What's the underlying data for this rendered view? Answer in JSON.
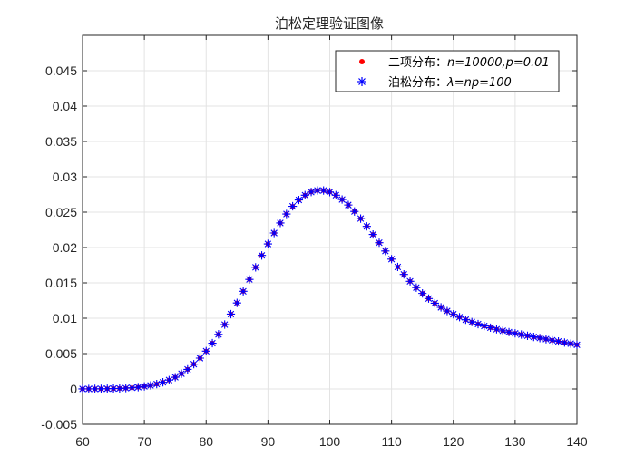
{
  "chart_data": {
    "type": "scatter",
    "title": "泊松定理验证图像",
    "xlabel": "",
    "ylabel": "",
    "xlim": [
      60,
      140
    ],
    "ylim": [
      -0.005,
      0.05
    ],
    "xticks": [
      "60",
      "70",
      "80",
      "90",
      "100",
      "110",
      "120",
      "130",
      "140"
    ],
    "yticks": [
      "-0.005",
      "0",
      "0.005",
      "0.01",
      "0.015",
      "0.02",
      "0.025",
      "0.03",
      "0.035",
      "0.04",
      "0.045"
    ],
    "grid": true,
    "legend_position": "top-right",
    "x": [
      60,
      61,
      62,
      63,
      64,
      65,
      66,
      67,
      68,
      69,
      70,
      71,
      72,
      73,
      74,
      75,
      76,
      77,
      78,
      79,
      80,
      81,
      82,
      83,
      84,
      85,
      86,
      87,
      88,
      89,
      90,
      91,
      92,
      93,
      94,
      95,
      96,
      97,
      98,
      99,
      100,
      101,
      102,
      103,
      104,
      105,
      106,
      107,
      108,
      109,
      110,
      111,
      112,
      113,
      114,
      115,
      116,
      117,
      118,
      119,
      120,
      121,
      122,
      123,
      124,
      125,
      126,
      127,
      128,
      129,
      130,
      131,
      132,
      133,
      134,
      135,
      136,
      137,
      138,
      139,
      140
    ],
    "series": [
      {
        "name_prefix": "二项分布：",
        "name_math": "n=10000,p=0.01",
        "marker": "dot",
        "color": "#ff0000",
        "values": [
          5e-06,
          8e-06,
          1.3e-05,
          2.1e-05,
          3.3e-05,
          5.1e-05,
          7.8e-05,
          0.000118,
          0.000174,
          0.000252,
          0.000358,
          0.000502,
          0.000693,
          0.000942,
          0.00126,
          0.00166,
          0.00216,
          0.00277,
          0.0035,
          0.00436,
          0.00535,
          0.00647,
          0.00772,
          0.0091,
          0.01058,
          0.01216,
          0.01381,
          0.01549,
          0.0172,
          0.01888,
          0.02051,
          0.02205,
          0.02347,
          0.02474,
          0.02583,
          0.02672,
          0.0274,
          0.02785,
          0.02807,
          0.02806,
          0.02784,
          0.0274,
          0.02679,
          0.02601,
          0.0251,
          0.02409,
          0.02299,
          0.02185,
          0.02068,
          0.01951,
          0.01836,
          0.01725,
          0.0162,
          0.01522,
          0.01433,
          0.01351,
          0.01278,
          0.01212,
          0.01154,
          0.01102,
          0.01056,
          0.01015,
          0.00979,
          0.00946,
          0.00917,
          0.0089,
          0.00866,
          0.00844,
          0.00823,
          0.00804,
          0.00786,
          0.00769,
          0.00752,
          0.00736,
          0.0072,
          0.00704,
          0.00688,
          0.00672,
          0.00656,
          0.0064,
          0.00624
        ]
      },
      {
        "name_prefix": "泊松分布：",
        "name_math": "λ=np=100",
        "marker": "asterisk",
        "color": "#0000ff",
        "values": [
          5e-06,
          8e-06,
          1.3e-05,
          2.1e-05,
          3.3e-05,
          5.1e-05,
          7.8e-05,
          0.000118,
          0.000174,
          0.000252,
          0.000358,
          0.000502,
          0.000693,
          0.000942,
          0.00126,
          0.00166,
          0.00216,
          0.00277,
          0.0035,
          0.00436,
          0.00535,
          0.00647,
          0.00772,
          0.0091,
          0.01058,
          0.01216,
          0.01381,
          0.01549,
          0.0172,
          0.01888,
          0.02051,
          0.02205,
          0.02347,
          0.02474,
          0.02583,
          0.02672,
          0.0274,
          0.02785,
          0.02807,
          0.02806,
          0.02784,
          0.0274,
          0.02679,
          0.02601,
          0.0251,
          0.02409,
          0.02299,
          0.02185,
          0.02068,
          0.01951,
          0.01836,
          0.01725,
          0.0162,
          0.01522,
          0.01433,
          0.01351,
          0.01278,
          0.01212,
          0.01154,
          0.01102,
          0.01056,
          0.01015,
          0.00979,
          0.00946,
          0.00917,
          0.0089,
          0.00866,
          0.00844,
          0.00823,
          0.00804,
          0.00786,
          0.00769,
          0.00752,
          0.00736,
          0.0072,
          0.00704,
          0.00688,
          0.00672,
          0.00656,
          0.0064,
          0.00624
        ]
      }
    ]
  }
}
